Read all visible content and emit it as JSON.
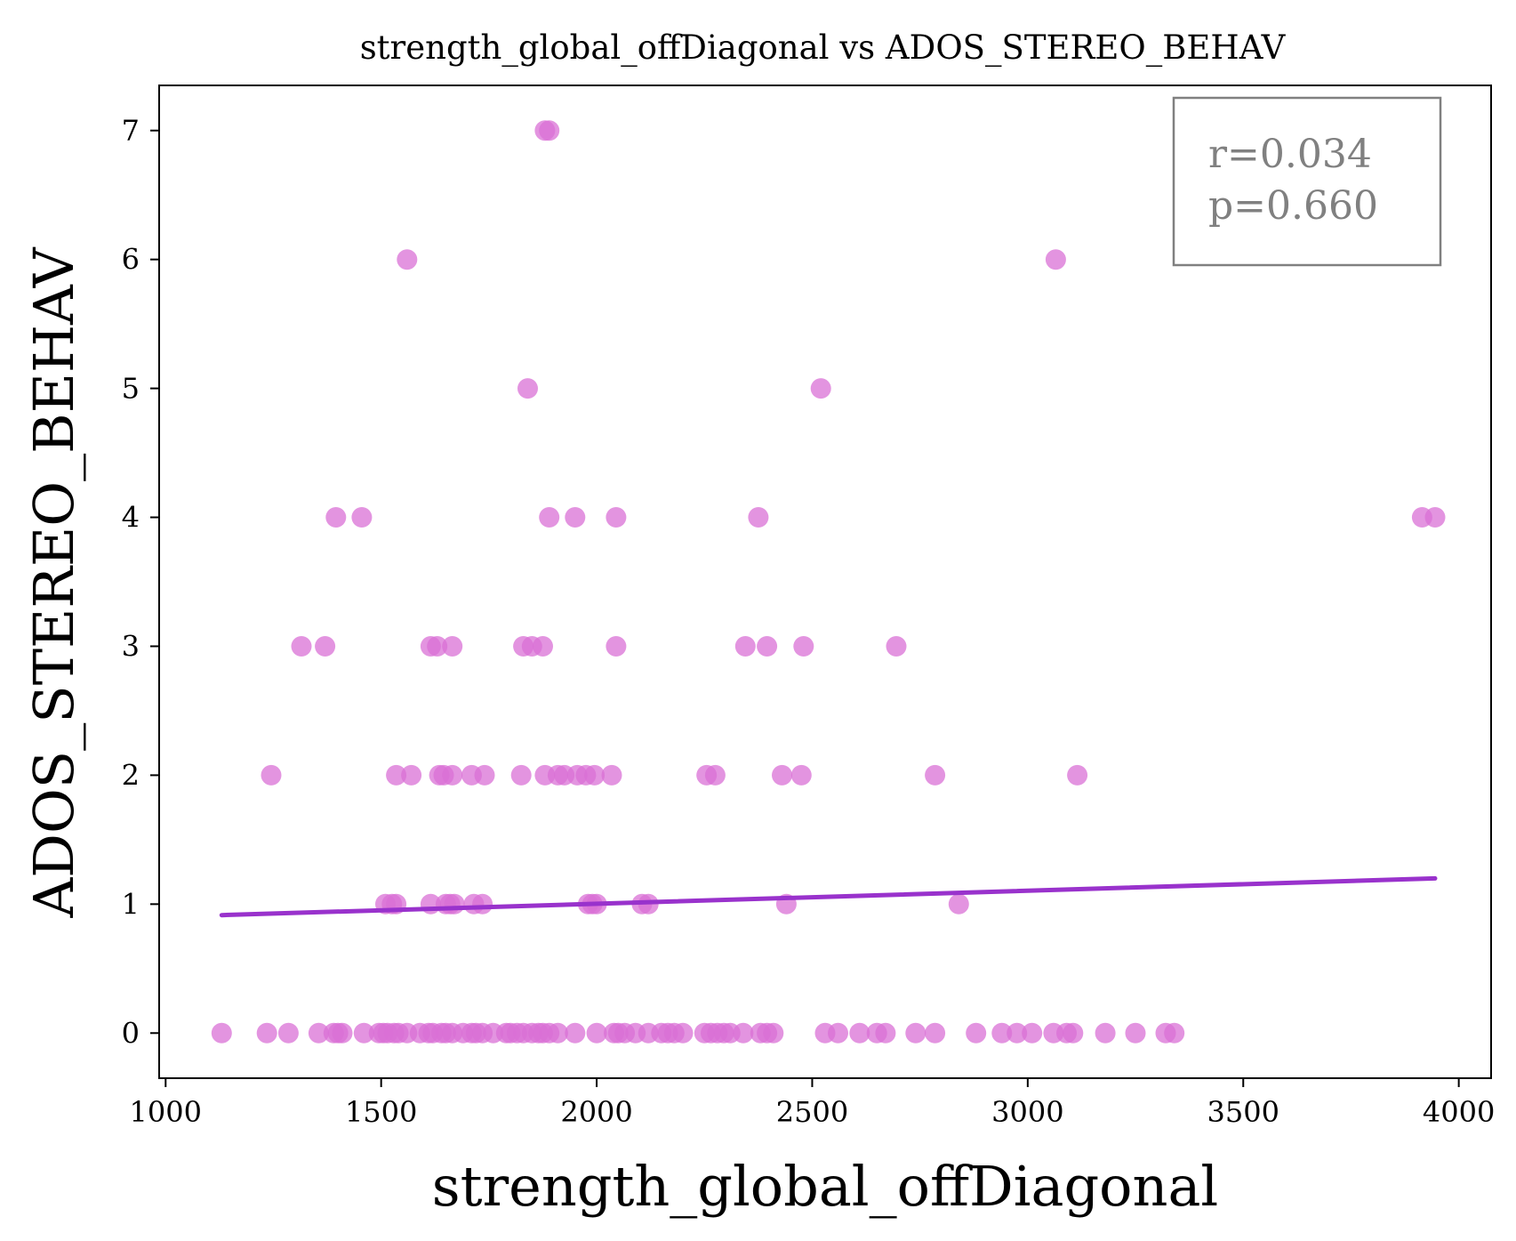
{
  "chart_data": {
    "type": "scatter",
    "title": "strength_global_offDiagonal vs ADOS_STEREO_BEHAV",
    "xlabel": "strength_global_offDiagonal",
    "ylabel": "ADOS_STEREO_BEHAV",
    "xlim": [
      985,
      4075
    ],
    "ylim": [
      -0.35,
      7.35
    ],
    "xticks": [
      1000,
      1500,
      2000,
      2500,
      3000,
      3500,
      4000
    ],
    "yticks": [
      0,
      1,
      2,
      3,
      4,
      5,
      6,
      7
    ],
    "grid": false,
    "point_color": "#DA70D6",
    "line_color": "#9932CC",
    "annotation": {
      "r_text": "r=0.034",
      "p_text": "p=0.660",
      "placement": "top-right"
    },
    "points": [
      [
        1130,
        0
      ],
      [
        1235,
        0
      ],
      [
        1285,
        0
      ],
      [
        1355,
        0
      ],
      [
        1390,
        0
      ],
      [
        1400,
        0
      ],
      [
        1410,
        0
      ],
      [
        1460,
        0
      ],
      [
        1495,
        0
      ],
      [
        1505,
        0
      ],
      [
        1515,
        0
      ],
      [
        1530,
        0
      ],
      [
        1540,
        0
      ],
      [
        1560,
        0
      ],
      [
        1590,
        0
      ],
      [
        1610,
        0
      ],
      [
        1620,
        0
      ],
      [
        1640,
        0
      ],
      [
        1650,
        0
      ],
      [
        1665,
        0
      ],
      [
        1690,
        0
      ],
      [
        1710,
        0
      ],
      [
        1720,
        0
      ],
      [
        1735,
        0
      ],
      [
        1760,
        0
      ],
      [
        1790,
        0
      ],
      [
        1800,
        0
      ],
      [
        1815,
        0
      ],
      [
        1830,
        0
      ],
      [
        1850,
        0
      ],
      [
        1865,
        0
      ],
      [
        1875,
        0
      ],
      [
        1890,
        0
      ],
      [
        1910,
        0
      ],
      [
        1950,
        0
      ],
      [
        2000,
        0
      ],
      [
        2040,
        0
      ],
      [
        2050,
        0
      ],
      [
        2065,
        0
      ],
      [
        2090,
        0
      ],
      [
        2120,
        0
      ],
      [
        2150,
        0
      ],
      [
        2165,
        0
      ],
      [
        2180,
        0
      ],
      [
        2200,
        0
      ],
      [
        2250,
        0
      ],
      [
        2265,
        0
      ],
      [
        2280,
        0
      ],
      [
        2295,
        0
      ],
      [
        2310,
        0
      ],
      [
        2340,
        0
      ],
      [
        2380,
        0
      ],
      [
        2395,
        0
      ],
      [
        2410,
        0
      ],
      [
        2530,
        0
      ],
      [
        2560,
        0
      ],
      [
        2610,
        0
      ],
      [
        2650,
        0
      ],
      [
        2670,
        0
      ],
      [
        2740,
        0
      ],
      [
        2785,
        0
      ],
      [
        2880,
        0
      ],
      [
        2940,
        0
      ],
      [
        2975,
        0
      ],
      [
        3010,
        0
      ],
      [
        3060,
        0
      ],
      [
        3090,
        0
      ],
      [
        3105,
        0
      ],
      [
        3180,
        0
      ],
      [
        3250,
        0
      ],
      [
        3320,
        0
      ],
      [
        3340,
        0
      ],
      [
        1510,
        1
      ],
      [
        1525,
        1
      ],
      [
        1535,
        1
      ],
      [
        1615,
        1
      ],
      [
        1650,
        1
      ],
      [
        1660,
        1
      ],
      [
        1670,
        1
      ],
      [
        1715,
        1
      ],
      [
        1735,
        1
      ],
      [
        1980,
        1
      ],
      [
        1990,
        1
      ],
      [
        2000,
        1
      ],
      [
        2105,
        1
      ],
      [
        2120,
        1
      ],
      [
        2440,
        1
      ],
      [
        2840,
        1
      ],
      [
        1245,
        2
      ],
      [
        1535,
        2
      ],
      [
        1570,
        2
      ],
      [
        1635,
        2
      ],
      [
        1645,
        2
      ],
      [
        1665,
        2
      ],
      [
        1710,
        2
      ],
      [
        1740,
        2
      ],
      [
        1825,
        2
      ],
      [
        1880,
        2
      ],
      [
        1910,
        2
      ],
      [
        1925,
        2
      ],
      [
        1955,
        2
      ],
      [
        1975,
        2
      ],
      [
        1995,
        2
      ],
      [
        2035,
        2
      ],
      [
        2255,
        2
      ],
      [
        2275,
        2
      ],
      [
        2430,
        2
      ],
      [
        2475,
        2
      ],
      [
        2785,
        2
      ],
      [
        3115,
        2
      ],
      [
        1315,
        3
      ],
      [
        1370,
        3
      ],
      [
        1615,
        3
      ],
      [
        1630,
        3
      ],
      [
        1665,
        3
      ],
      [
        1830,
        3
      ],
      [
        1850,
        3
      ],
      [
        1875,
        3
      ],
      [
        2045,
        3
      ],
      [
        2345,
        3
      ],
      [
        2395,
        3
      ],
      [
        2480,
        3
      ],
      [
        2695,
        3
      ],
      [
        1395,
        4
      ],
      [
        1455,
        4
      ],
      [
        1890,
        4
      ],
      [
        1950,
        4
      ],
      [
        2045,
        4
      ],
      [
        2375,
        4
      ],
      [
        3915,
        4
      ],
      [
        3945,
        4
      ],
      [
        1840,
        5
      ],
      [
        2520,
        5
      ],
      [
        1560,
        6
      ],
      [
        3065,
        6
      ],
      [
        1880,
        7
      ],
      [
        1890,
        7
      ]
    ],
    "regression": {
      "x": [
        1130,
        3945
      ],
      "y": [
        0.915,
        1.2
      ]
    }
  }
}
